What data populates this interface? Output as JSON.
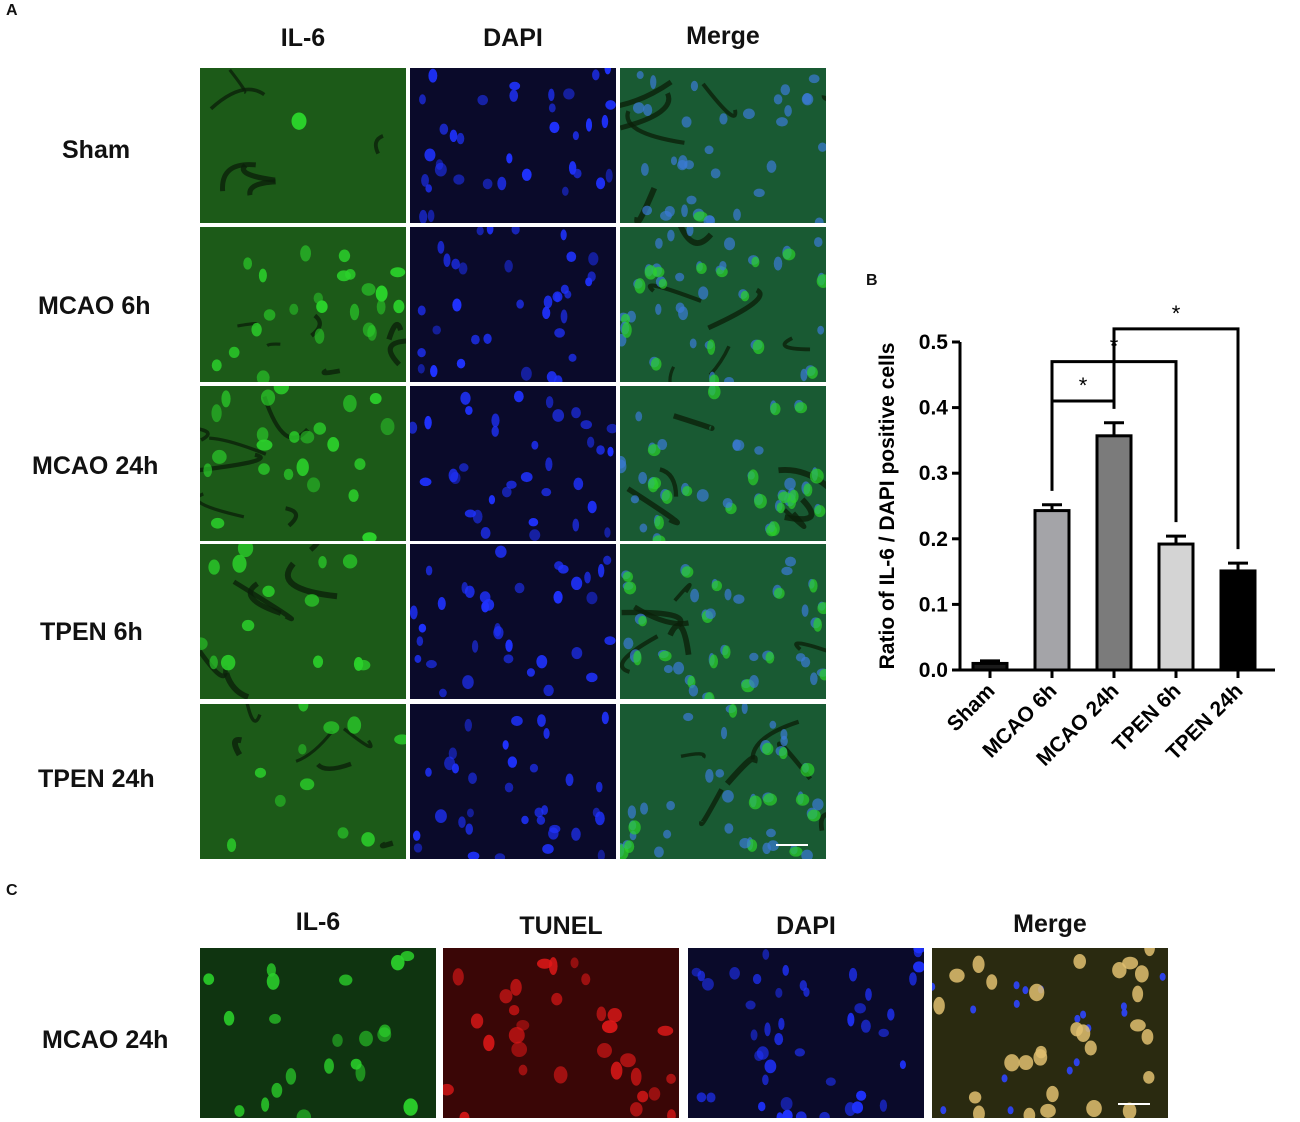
{
  "panel_a": {
    "letter": "A",
    "columns": [
      "IL-6",
      "DAPI",
      "Merge"
    ],
    "rows": [
      "Sham",
      "MCAO 6h",
      "MCAO 24h",
      "TPEN 6h",
      "TPEN 24h"
    ]
  },
  "panel_b": {
    "letter": "B"
  },
  "panel_c": {
    "letter": "C",
    "columns": [
      "IL-6",
      "TUNEL",
      "DAPI",
      "Merge"
    ],
    "row": "MCAO 24h"
  },
  "colors": {
    "il6_green": "#2bd12b",
    "dapi_blue": "#1f32ff",
    "tunel_red": "#e01818"
  },
  "chart_data": {
    "type": "bar",
    "ylabel": "Ratio of IL-6 / DAPI positive cells",
    "xlabel": "",
    "categories": [
      "Sham",
      "MCAO 6h",
      "MCAO 24h",
      "TPEN 6h",
      "TPEN 24h"
    ],
    "values": [
      0.01,
      0.243,
      0.357,
      0.192,
      0.151
    ],
    "errors": [
      0.004,
      0.009,
      0.02,
      0.012,
      0.012
    ],
    "bar_colors": [
      "#1a1a1a",
      "#a4a4a8",
      "#7b7b7b",
      "#d4d4d4",
      "#000000"
    ],
    "ylim": [
      0,
      0.5
    ],
    "yticks": [
      0.0,
      0.1,
      0.2,
      0.3,
      0.4,
      0.5
    ],
    "ytick_labels": [
      "0.0",
      "0.1",
      "0.2",
      "0.3",
      "0.4",
      "0.5"
    ],
    "significance": [
      {
        "from": 1,
        "to": 2,
        "label": "*"
      },
      {
        "from": 1,
        "to": 3,
        "label": "*"
      },
      {
        "from": 2,
        "to": 4,
        "label": "*"
      }
    ]
  }
}
